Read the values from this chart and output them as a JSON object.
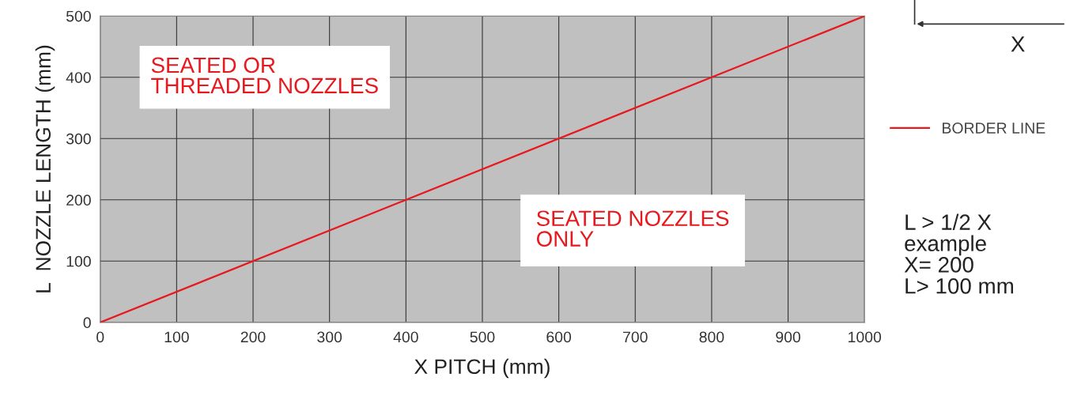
{
  "chart_data": {
    "type": "line",
    "xlabel": "X PITCH (mm)",
    "ylabel": "L  NOZZLE LENGTH (mm)",
    "x": [
      0,
      1000
    ],
    "series": [
      {
        "name": "BORDER LINE",
        "color": "#e8191e",
        "values": [
          0,
          500
        ]
      }
    ],
    "xlim": [
      0,
      1000
    ],
    "xticks": [
      0,
      100,
      200,
      300,
      400,
      500,
      600,
      700,
      800,
      900,
      1000
    ],
    "ylim": [
      0,
      500
    ],
    "yticks": [
      0,
      100,
      200,
      300,
      400,
      500
    ],
    "grid": true,
    "legend": "right",
    "marker": "none",
    "line_style": "solid",
    "annotations": [
      "SEATED OR\nTHREADED NOZZLES",
      "SEATED NOZZLES\nONLY",
      "L > 1/2 X\nexample\nX= 200\nL> 100 mm",
      "X"
    ]
  }
}
